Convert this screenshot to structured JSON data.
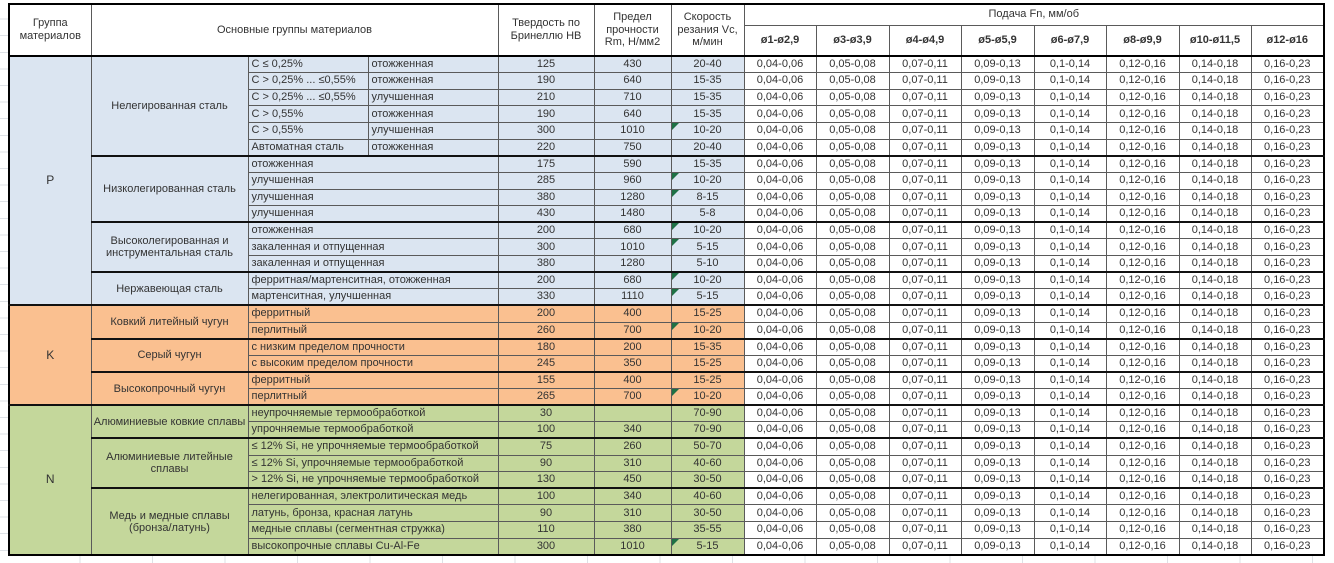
{
  "header": {
    "col_group": "Группа материалов",
    "col_materials": "Основные группы материалов",
    "col_hardness": "Твердость по Бринеллю HB",
    "col_strength": "Предел прочности Rm, Н/мм2",
    "col_speed": "Скорость резания Vc, м/мин",
    "feed_title": "Подача Fn, мм/об",
    "feed_cols": [
      "ø1-ø2,9",
      "ø3-ø3,9",
      "ø4-ø4,9",
      "ø5-ø5,9",
      "ø6-ø7,9",
      "ø8-ø9,9",
      "ø10-ø11,5",
      "ø12-ø16"
    ]
  },
  "feed_values": [
    "0,04-0,06",
    "0,05-0,08",
    "0,07-0,11",
    "0,09-0,13",
    "0,1-0,14",
    "0,12-0,16",
    "0,14-0,18",
    "0,16-0,23"
  ],
  "error_indicator_color": "#1e7145",
  "groups": [
    {
      "label": "P",
      "color": "#dbe5f1",
      "families": [
        {
          "name": "Нелегированная сталь",
          "rows": [
            {
              "spec": "C ≤ 0,25%",
              "state": "отожженная",
              "hb": "125",
              "rm": "430",
              "vc": "20-40",
              "tri": false
            },
            {
              "spec": "C > 0,25% ... ≤0,55%",
              "state": "отожженная",
              "hb": "190",
              "rm": "640",
              "vc": "15-35",
              "tri": false
            },
            {
              "spec": "C > 0,25% ... ≤0,55%",
              "state": "улучшенная",
              "hb": "210",
              "rm": "710",
              "vc": "15-35",
              "tri": false
            },
            {
              "spec": "C > 0,55%",
              "state": "отожженная",
              "hb": "190",
              "rm": "640",
              "vc": "15-35",
              "tri": false
            },
            {
              "spec": "C > 0,55%",
              "state": "улучшенная",
              "hb": "300",
              "rm": "1010",
              "vc": "10-20",
              "tri": true
            },
            {
              "spec": "Автоматная сталь",
              "state": "отожженная",
              "hb": "220",
              "rm": "750",
              "vc": "20-40",
              "tri": false
            }
          ]
        },
        {
          "name": "Низколегированная сталь",
          "rows": [
            {
              "desc": "отожженная",
              "hb": "175",
              "rm": "590",
              "vc": "15-35",
              "tri": false
            },
            {
              "desc": "улучшенная",
              "hb": "285",
              "rm": "960",
              "vc": "10-20",
              "tri": true
            },
            {
              "desc": "улучшенная",
              "hb": "380",
              "rm": "1280",
              "vc": "8-15",
              "tri": true
            },
            {
              "desc": "улучшенная",
              "hb": "430",
              "rm": "1480",
              "vc": "5-8",
              "tri": false
            }
          ]
        },
        {
          "name": "Высоколегированная и инструментальная сталь",
          "rows": [
            {
              "desc": "отожженная",
              "hb": "200",
              "rm": "680",
              "vc": "10-20",
              "tri": true
            },
            {
              "desc": "закаленная и отпущенная",
              "hb": "300",
              "rm": "1010",
              "vc": "5-15",
              "tri": true
            },
            {
              "desc": "закаленная и отпущенная",
              "hb": "380",
              "rm": "1280",
              "vc": "5-10",
              "tri": false
            }
          ]
        },
        {
          "name": "Нержавеющая сталь",
          "rows": [
            {
              "desc": "ферритная/мартенситная, отожженная",
              "hb": "200",
              "rm": "680",
              "vc": "10-20",
              "tri": true
            },
            {
              "desc": "мартенситная, улучшенная",
              "hb": "330",
              "rm": "1110",
              "vc": "5-15",
              "tri": true
            }
          ]
        }
      ]
    },
    {
      "label": "K",
      "color": "#fac090",
      "families": [
        {
          "name": "Ковкий литейный чугун",
          "rows": [
            {
              "desc": "ферритный",
              "hb": "200",
              "rm": "400",
              "vc": "15-25",
              "tri": false
            },
            {
              "desc": "перлитный",
              "hb": "260",
              "rm": "700",
              "vc": "10-20",
              "tri": true
            }
          ]
        },
        {
          "name": "Серый чугун",
          "rows": [
            {
              "desc": "с низким пределом прочности",
              "hb": "180",
              "rm": "200",
              "vc": "15-35",
              "tri": false
            },
            {
              "desc": "с высоким пределом прочности",
              "hb": "245",
              "rm": "350",
              "vc": "15-25",
              "tri": false
            }
          ]
        },
        {
          "name": "Высокопрочный чугун",
          "rows": [
            {
              "desc": "ферритный",
              "hb": "155",
              "rm": "400",
              "vc": "15-25",
              "tri": false
            },
            {
              "desc": "перлитный",
              "hb": "265",
              "rm": "700",
              "vc": "10-20",
              "tri": true
            }
          ]
        }
      ]
    },
    {
      "label": "N",
      "color": "#c4d79b",
      "families": [
        {
          "name": "Алюминиевые ковкие сплавы",
          "rows": [
            {
              "desc": "неупрочняемые термообработкой",
              "hb": "30",
              "rm": "",
              "vc": "70-90",
              "tri": false
            },
            {
              "desc": "упрочняемые термообработкой",
              "hb": "100",
              "rm": "340",
              "vc": "70-90",
              "tri": false
            }
          ]
        },
        {
          "name": "Алюминиевые литейные сплавы",
          "rows": [
            {
              "desc": "≤ 12% Si, не упрочняемые термообработкой",
              "hb": "75",
              "rm": "260",
              "vc": "50-70",
              "tri": false
            },
            {
              "desc": "≤ 12% Si, упрочняемые термообработкой",
              "hb": "90",
              "rm": "310",
              "vc": "40-60",
              "tri": false
            },
            {
              "desc": "> 12% Si, не упрочняемые термообработкой",
              "hb": "130",
              "rm": "450",
              "vc": "30-50",
              "tri": false
            }
          ]
        },
        {
          "name": "Медь и медные сплавы (бронза/латунь)",
          "rows": [
            {
              "desc": "нелегированная, электролитическая медь",
              "hb": "100",
              "rm": "340",
              "vc": "40-60",
              "tri": false
            },
            {
              "desc": "латунь, бронза, красная латунь",
              "hb": "90",
              "rm": "310",
              "vc": "30-50",
              "tri": false
            },
            {
              "desc": "медные сплавы (сегментная стружка)",
              "hb": "110",
              "rm": "380",
              "vc": "35-55",
              "tri": false
            },
            {
              "desc": "высокопрочные сплавы Cu-Al-Fe",
              "hb": "300",
              "rm": "1010",
              "vc": "5-15",
              "tri": true
            }
          ]
        }
      ]
    }
  ]
}
